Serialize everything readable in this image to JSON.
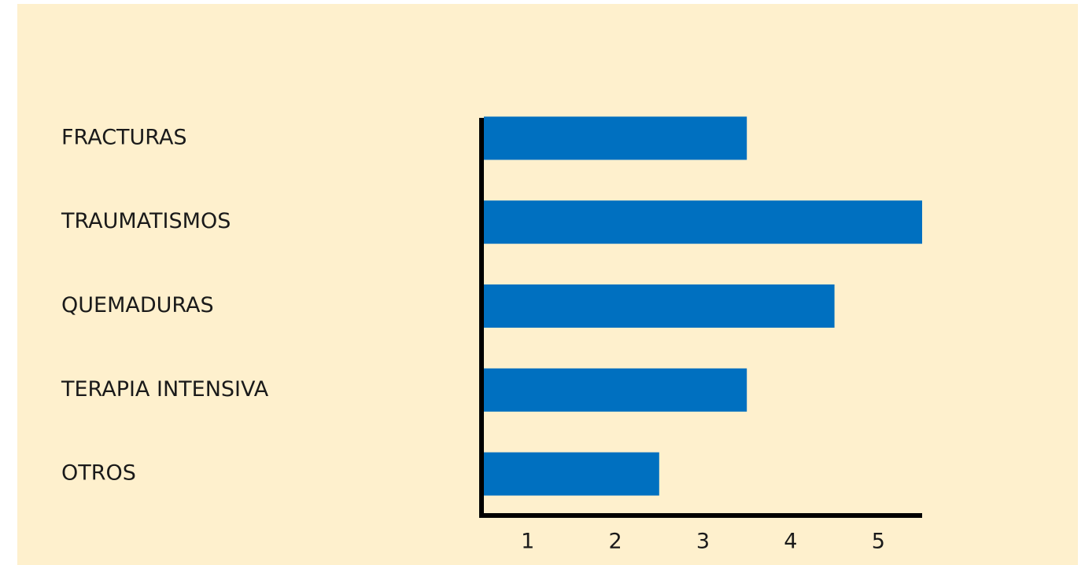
{
  "chart_data": {
    "type": "barh",
    "categories": [
      "FRACTURAS",
      "TRAUMATISMOS",
      "QUEMADURAS",
      "TERAPIA INTENSIVA",
      "OTROS"
    ],
    "values": [
      3,
      5,
      4,
      3,
      2
    ],
    "color": "#0070c0",
    "xlim": [
      0,
      5
    ],
    "xticks": [
      1,
      2,
      3,
      4,
      5
    ],
    "grid": false
  }
}
